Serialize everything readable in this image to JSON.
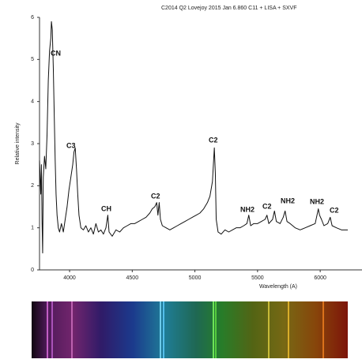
{
  "chart_data": {
    "type": "line",
    "title": "C2014 Q2 Lovejoy  2015 Jan 6.860  C11 + LISA + SXVF",
    "y_label": "Relative intensity",
    "x_label": "Wavelength (A)",
    "xlim": [
      3760,
      6220
    ],
    "ylim": [
      0,
      6
    ],
    "xticks": [
      4000,
      4500,
      5000,
      5500,
      6000
    ],
    "yticks": [
      0,
      1,
      2,
      3,
      4,
      5,
      6
    ],
    "grid": false,
    "color": "#111111",
    "annotations": [
      "CN",
      "C3",
      "CH",
      "C2",
      "C2",
      "NH2",
      "C2",
      "NH2",
      "NH2",
      "C2"
    ],
    "x": [
      3760,
      3770,
      3775,
      3780,
      3785,
      3790,
      3800,
      3810,
      3820,
      3830,
      3840,
      3850,
      3855,
      3862,
      3870,
      3878,
      3885,
      3892,
      3900,
      3910,
      3920,
      3935,
      3950,
      3965,
      3980,
      3995,
      4010,
      4025,
      4035,
      4045,
      4055,
      4065,
      4075,
      4090,
      4110,
      4130,
      4150,
      4170,
      4190,
      4210,
      4230,
      4250,
      4270,
      4290,
      4305,
      4315,
      4340,
      4370,
      4400,
      4430,
      4460,
      4490,
      4520,
      4550,
      4580,
      4610,
      4640,
      4660,
      4680,
      4695,
      4705,
      4715,
      4725,
      4740,
      4770,
      4800,
      4830,
      4860,
      4890,
      4920,
      4950,
      4980,
      5010,
      5040,
      5070,
      5100,
      5120,
      5140,
      5155,
      5163,
      5170,
      5185,
      5210,
      5240,
      5270,
      5300,
      5330,
      5360,
      5390,
      5415,
      5430,
      5445,
      5470,
      5500,
      5530,
      5560,
      5575,
      5590,
      5620,
      5635,
      5650,
      5680,
      5705,
      5720,
      5735,
      5760,
      5800,
      5840,
      5880,
      5920,
      5960,
      5985,
      5995,
      6010,
      6030,
      6060,
      6080,
      6095,
      6130,
      6170,
      6220
    ],
    "values": [
      2.6,
      1.8,
      2.5,
      1.2,
      0.4,
      2.2,
      2.7,
      2.4,
      3.2,
      4.5,
      5.2,
      5.5,
      5.9,
      5.7,
      4.8,
      3.6,
      2.6,
      1.8,
      1.3,
      1.0,
      0.9,
      1.1,
      0.9,
      1.2,
      1.5,
      1.9,
      2.2,
      2.5,
      2.8,
      2.9,
      2.4,
      1.8,
      1.3,
      1.0,
      0.95,
      1.05,
      0.9,
      1.0,
      0.85,
      1.1,
      0.9,
      0.95,
      0.85,
      1.0,
      1.3,
      0.9,
      0.8,
      0.95,
      0.9,
      1.0,
      1.05,
      1.1,
      1.1,
      1.15,
      1.2,
      1.25,
      1.35,
      1.45,
      1.5,
      1.6,
      1.3,
      1.6,
      1.2,
      1.05,
      1.0,
      0.95,
      1.0,
      1.05,
      1.1,
      1.15,
      1.2,
      1.25,
      1.3,
      1.35,
      1.45,
      1.6,
      1.75,
      2.1,
      2.9,
      2.3,
      1.2,
      0.9,
      0.85,
      0.95,
      0.9,
      0.95,
      1.0,
      1.0,
      1.05,
      1.1,
      1.3,
      1.05,
      1.1,
      1.1,
      1.15,
      1.2,
      1.3,
      1.1,
      1.2,
      1.4,
      1.15,
      1.1,
      1.25,
      1.4,
      1.15,
      1.1,
      1.0,
      0.95,
      1.0,
      1.05,
      1.1,
      1.45,
      1.3,
      1.2,
      1.05,
      1.1,
      1.25,
      1.05,
      1.0,
      0.95,
      0.95
    ]
  }
}
